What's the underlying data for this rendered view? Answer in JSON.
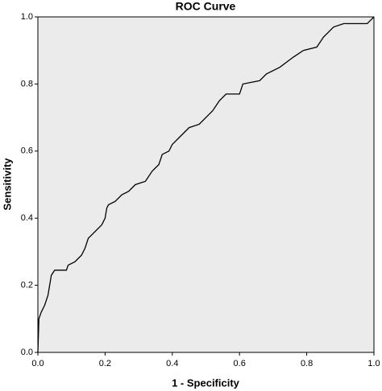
{
  "chart_data": {
    "type": "line",
    "title": "ROC Curve",
    "x_label": "1 - Specificity",
    "y_label": "Sensitivity",
    "color": "#000000",
    "background": "#ebebeb",
    "x": [
      0,
      0.003,
      0.01,
      0.02,
      0.03,
      0.035,
      0.04,
      0.05,
      0.085,
      0.09,
      0.11,
      0.12,
      0.13,
      0.14,
      0.15,
      0.16,
      0.18,
      0.19,
      0.2,
      0.205,
      0.21,
      0.23,
      0.25,
      0.27,
      0.29,
      0.32,
      0.34,
      0.36,
      0.37,
      0.39,
      0.4,
      0.42,
      0.45,
      0.48,
      0.5,
      0.52,
      0.54,
      0.56,
      0.6,
      0.61,
      0.66,
      0.68,
      0.72,
      0.76,
      0.79,
      0.83,
      0.85,
      0.88,
      0.91,
      0.98,
      0.99,
      1
    ],
    "values": [
      0,
      0.1,
      0.12,
      0.14,
      0.17,
      0.2,
      0.23,
      0.245,
      0.245,
      0.26,
      0.27,
      0.28,
      0.29,
      0.31,
      0.34,
      0.35,
      0.37,
      0.38,
      0.4,
      0.43,
      0.44,
      0.45,
      0.47,
      0.48,
      0.5,
      0.51,
      0.54,
      0.56,
      0.59,
      0.6,
      0.62,
      0.64,
      0.67,
      0.68,
      0.7,
      0.72,
      0.75,
      0.77,
      0.77,
      0.8,
      0.81,
      0.83,
      0.85,
      0.88,
      0.9,
      0.91,
      0.94,
      0.97,
      0.98,
      0.98,
      0.99,
      1
    ],
    "xlim": [
      0,
      1
    ],
    "ylim": [
      0,
      1
    ],
    "xticks": [
      {
        "value": 0,
        "label": "0.0"
      },
      0.2,
      0.4,
      0.6,
      0.8,
      {
        "value": 1,
        "label": "1.0"
      }
    ],
    "yticks": [
      {
        "value": 0,
        "label": "0.0"
      },
      0.2,
      0.4,
      0.6,
      0.8,
      {
        "value": 1,
        "label": "1.0"
      }
    ]
  }
}
